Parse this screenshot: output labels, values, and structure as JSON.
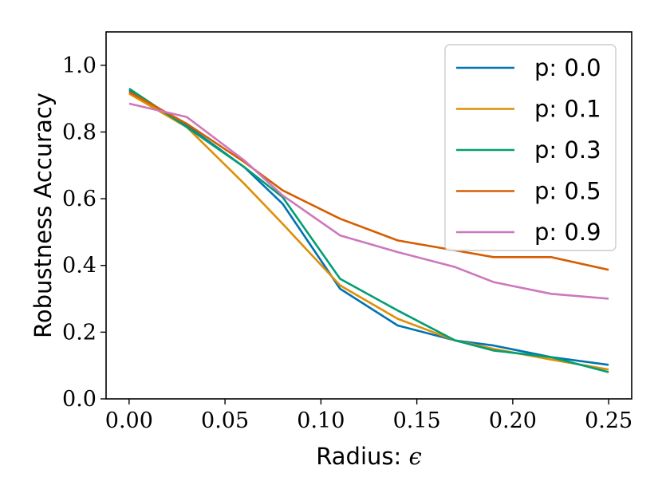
{
  "chart_data": {
    "type": "line",
    "xlabel": "Radius: ",
    "xlabel_symbol": "ϵ",
    "ylabel": "Robustness Accuracy",
    "xlim": [
      -0.012,
      0.262
    ],
    "ylim": [
      0.0,
      1.1
    ],
    "xticks": [
      0.0,
      0.05,
      0.1,
      0.15,
      0.2,
      0.25
    ],
    "xtick_labels": [
      "0.00",
      "0.05",
      "0.10",
      "0.15",
      "0.20",
      "0.25"
    ],
    "yticks": [
      0.0,
      0.2,
      0.4,
      0.6,
      0.8,
      1.0
    ],
    "ytick_labels": [
      "0.0",
      "0.2",
      "0.4",
      "0.6",
      "0.8",
      "1.0"
    ],
    "grid": false,
    "legend_position": "top-right",
    "x": [
      0.0,
      0.03,
      0.06,
      0.08,
      0.11,
      0.14,
      0.17,
      0.19,
      0.22,
      0.25
    ],
    "series": [
      {
        "name": "p:  0.0",
        "color": "#0173b2",
        "values": [
          0.925,
          0.82,
          0.695,
          0.585,
          0.33,
          0.22,
          0.175,
          0.16,
          0.125,
          0.102
        ]
      },
      {
        "name": "p:  0.1",
        "color": "#de8f05",
        "values": [
          0.915,
          0.815,
          0.645,
          0.525,
          0.34,
          0.24,
          0.175,
          0.15,
          0.118,
          0.088
        ]
      },
      {
        "name": "p:  0.3",
        "color": "#029e73",
        "values": [
          0.93,
          0.815,
          0.695,
          0.605,
          0.36,
          0.265,
          0.175,
          0.145,
          0.125,
          0.08
        ]
      },
      {
        "name": "p:  0.5",
        "color": "#d55e00",
        "values": [
          0.92,
          0.825,
          0.71,
          0.625,
          0.54,
          0.475,
          0.445,
          0.425,
          0.425,
          0.387
        ]
      },
      {
        "name": "p:  0.9",
        "color": "#cc78bc",
        "values": [
          0.885,
          0.845,
          0.715,
          0.61,
          0.49,
          0.44,
          0.395,
          0.35,
          0.315,
          0.3
        ]
      }
    ]
  }
}
